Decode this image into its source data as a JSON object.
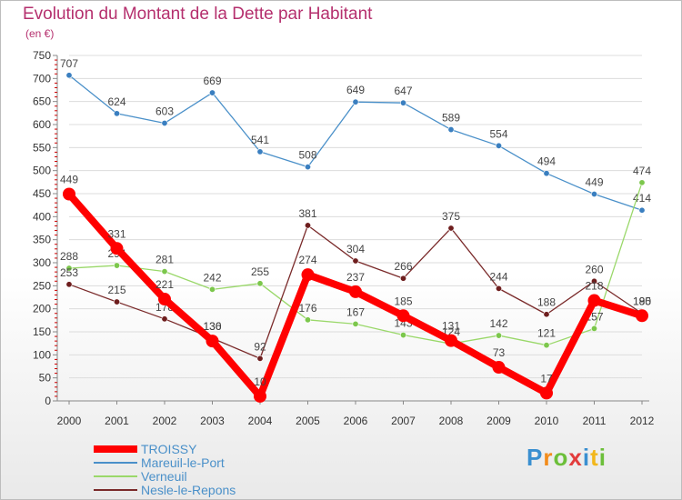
{
  "chart_data": {
    "type": "line",
    "title": "Evolution du Montant de la Dette par Habitant",
    "subtitle": "(en €)",
    "categories": [
      "2000",
      "2001",
      "2002",
      "2003",
      "2004",
      "2005",
      "2006",
      "2007",
      "2008",
      "2009",
      "2010",
      "2011",
      "2012"
    ],
    "yticks": [
      0,
      50,
      100,
      150,
      200,
      250,
      300,
      350,
      400,
      450,
      500,
      550,
      600,
      650,
      700,
      750
    ],
    "ylim": [
      0,
      750
    ],
    "series": [
      {
        "name": "Mareuil-le-Port",
        "color": "#4a90c9",
        "pointColor": "#3a7fc0",
        "values": [
          707,
          624,
          603,
          669,
          541,
          508,
          649,
          647,
          589,
          554,
          494,
          449,
          414
        ],
        "labels": [
          "707",
          "624",
          "603",
          "669",
          "541",
          "508",
          "649",
          "647",
          "589",
          "554",
          "494",
          "449",
          "414"
        ]
      },
      {
        "name": "Verneuil",
        "color": "#9ad86a",
        "pointColor": "#7cc74c",
        "values": [
          288,
          294,
          281,
          242,
          255,
          176,
          167,
          143,
          124,
          142,
          121,
          157,
          474
        ],
        "labels": [
          "288",
          "294",
          "281",
          "242",
          "255",
          "176",
          "167",
          "143",
          "124",
          "142",
          "121",
          "157",
          "474"
        ]
      },
      {
        "name": "Nesle-le-Repons",
        "color": "#7a2a2a",
        "pointColor": "#6e1e1e",
        "values": [
          253,
          215,
          178,
          136,
          92,
          381,
          304,
          266,
          375,
          244,
          188,
          260,
          190
        ],
        "labels": [
          "253",
          "215",
          "178",
          "136",
          "92",
          "381",
          "304",
          "266",
          "375",
          "244",
          "188",
          "260",
          "190"
        ]
      },
      {
        "name": "TROISSY",
        "color": "#ff0000",
        "pointColor": "#ff0000",
        "values": [
          449,
          331,
          221,
          130,
          10,
          274,
          237,
          185,
          131,
          73,
          17,
          218,
          185
        ],
        "labels": [
          "449",
          "331",
          "221",
          "130",
          "10",
          "274",
          "237",
          "185",
          "131",
          "73",
          "17",
          "218",
          "185"
        ]
      }
    ]
  },
  "legend": {
    "items": [
      {
        "name": "TROISSY",
        "color": "#ff0000"
      },
      {
        "name": "Mareuil-le-Port",
        "color": "#4a90c9"
      },
      {
        "name": "Verneuil",
        "color": "#9ad86a"
      },
      {
        "name": "Nesle-le-Repons",
        "color": "#7a2a2a"
      }
    ]
  },
  "logo": {
    "letters": [
      "P",
      "r",
      "o",
      "x",
      "i",
      "t",
      "i"
    ],
    "colors": [
      "#3a8fd0",
      "#f28c1c",
      "#6cbf3a",
      "#e23c3c",
      "#3a8fd0",
      "#f2b71c",
      "#6cbf3a"
    ]
  }
}
